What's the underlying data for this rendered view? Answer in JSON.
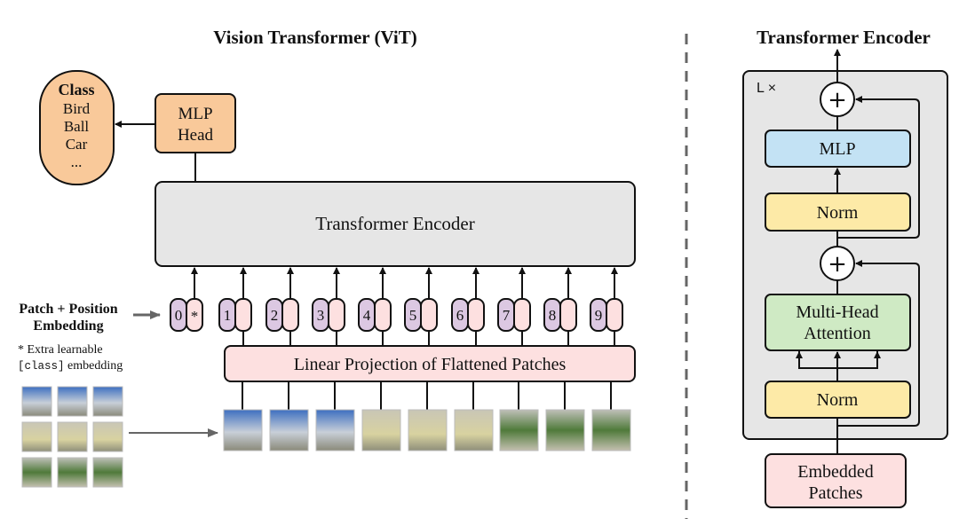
{
  "vit": {
    "title": "Vision Transformer (ViT)",
    "class_box": {
      "title": "Class",
      "items": [
        "Bird",
        "Ball",
        "Car",
        "..."
      ]
    },
    "mlp_head": [
      "MLP",
      "Head"
    ],
    "encoder_label": "Transformer Encoder",
    "embedding_label": [
      "Patch + Position",
      "Embedding"
    ],
    "extra_note": {
      "line1": "* Extra learnable",
      "code": "[class]",
      "line2": " embedding"
    },
    "tokens": [
      "0",
      "1",
      "2",
      "3",
      "4",
      "5",
      "6",
      "7",
      "8",
      "9"
    ],
    "class_token_mark": "*",
    "projection_label": "Linear Projection of Flattened Patches"
  },
  "encoder_detail": {
    "title": "Transformer Encoder",
    "repeat_label": "L ×",
    "plus": "+",
    "mlp": "MLP",
    "norm": "Norm",
    "attention": [
      "Multi-Head",
      "Attention"
    ],
    "input": [
      "Embedded",
      "Patches"
    ]
  },
  "colors": {
    "class": "#f9c99a",
    "encoder": "#e6e6e6",
    "position": "#dcc8e2",
    "patch_embed": "#fde0e0",
    "mlp": "#c3e2f4",
    "norm": "#fdeaa7",
    "attention": "#cfeac4"
  }
}
